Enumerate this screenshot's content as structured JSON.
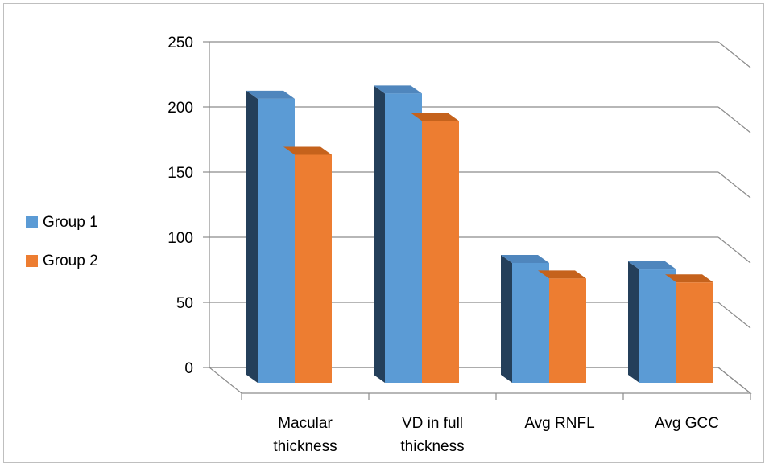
{
  "chart_data": {
    "type": "bar",
    "categories": [
      [
        "Macular",
        "thickness"
      ],
      [
        "VD in full",
        "thickness"
      ],
      [
        "Avg RNFL"
      ],
      [
        "Avg GCC"
      ]
    ],
    "series": [
      {
        "name": "Group 1",
        "color": "#5b9bd5",
        "values": [
          218,
          222,
          92,
          87
        ]
      },
      {
        "name": "Group 2",
        "color": "#ed7d31",
        "values": [
          175,
          201,
          80,
          77
        ]
      }
    ],
    "ylim": [
      0,
      250
    ],
    "yticks": [
      "0",
      "50",
      "100",
      "150",
      "200",
      "250"
    ],
    "grid": true,
    "legend_position": "left",
    "style": "3d-clustered-column"
  }
}
